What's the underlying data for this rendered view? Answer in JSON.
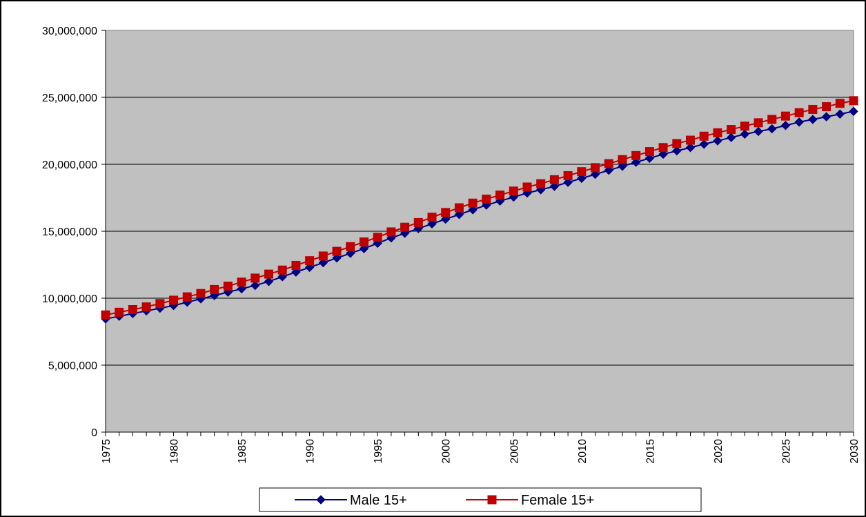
{
  "chart_data": {
    "type": "line",
    "title": "",
    "xlabel": "",
    "ylabel": "",
    "x": [
      1975,
      1976,
      1977,
      1978,
      1979,
      1980,
      1981,
      1982,
      1983,
      1984,
      1985,
      1986,
      1987,
      1988,
      1989,
      1990,
      1991,
      1992,
      1993,
      1994,
      1995,
      1996,
      1997,
      1998,
      1999,
      2000,
      2001,
      2002,
      2003,
      2004,
      2005,
      2006,
      2007,
      2008,
      2009,
      2010,
      2011,
      2012,
      2013,
      2014,
      2015,
      2016,
      2017,
      2018,
      2019,
      2020,
      2021,
      2022,
      2023,
      2024,
      2025,
      2026,
      2027,
      2028,
      2029,
      2030
    ],
    "xlim": [
      1975,
      2030
    ],
    "x_tick_labels": [
      "1975",
      "1980",
      "1985",
      "1990",
      "1995",
      "2000",
      "2005",
      "2010",
      "2015",
      "2020",
      "2025",
      "2030"
    ],
    "ylim": [
      0,
      30000000
    ],
    "y_tick_labels": [
      "0",
      "5,000,000",
      "10,000,000",
      "15,000,000",
      "20,000,000",
      "25,000,000",
      "30,000,000"
    ],
    "grid": true,
    "legend_position": "bottom",
    "plot_background": "#c0c0c0",
    "series": [
      {
        "name": "Male 15+",
        "color": "#000080",
        "marker": "diamond",
        "values": [
          8450000,
          8650000,
          8850000,
          9050000,
          9250000,
          9450000,
          9700000,
          9950000,
          10200000,
          10450000,
          10700000,
          10950000,
          11250000,
          11600000,
          11950000,
          12300000,
          12650000,
          13000000,
          13350000,
          13700000,
          14100000,
          14500000,
          14850000,
          15200000,
          15550000,
          15900000,
          16250000,
          16600000,
          16950000,
          17250000,
          17550000,
          17850000,
          18100000,
          18350000,
          18650000,
          18950000,
          19250000,
          19550000,
          19850000,
          20150000,
          20450000,
          20750000,
          21000000,
          21250000,
          21500000,
          21750000,
          22000000,
          22250000,
          22450000,
          22650000,
          22900000,
          23150000,
          23350000,
          23550000,
          23750000,
          23950000
        ]
      },
      {
        "name": "Female 15+",
        "color": "#c00000",
        "marker": "square",
        "values": [
          8750000,
          8950000,
          9150000,
          9350000,
          9600000,
          9850000,
          10100000,
          10350000,
          10650000,
          10900000,
          11200000,
          11500000,
          11800000,
          12100000,
          12450000,
          12800000,
          13150000,
          13500000,
          13850000,
          14200000,
          14550000,
          14950000,
          15300000,
          15650000,
          16050000,
          16400000,
          16750000,
          17100000,
          17400000,
          17700000,
          18000000,
          18300000,
          18550000,
          18850000,
          19150000,
          19450000,
          19750000,
          20050000,
          20350000,
          20650000,
          20950000,
          21250000,
          21550000,
          21800000,
          22100000,
          22350000,
          22600000,
          22850000,
          23100000,
          23350000,
          23600000,
          23850000,
          24100000,
          24300000,
          24550000,
          24750000
        ]
      }
    ]
  }
}
